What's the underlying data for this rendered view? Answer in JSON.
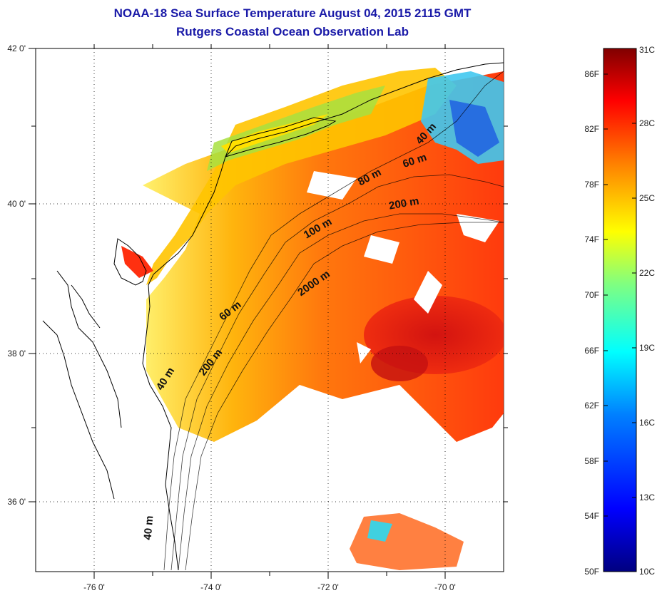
{
  "title": "NOAA-18 Sea Surface Temperature August 04, 2015 2115 GMT",
  "subtitle": "Rutgers Coastal Ocean Observation Lab",
  "map": {
    "lat_labels": [
      "42 0'",
      "40 0'",
      "38 0'",
      "36 0'"
    ],
    "lon_labels": [
      "-76 0'",
      "-74 0'",
      "-72 0'",
      "-70 0'"
    ],
    "depth_labels": [
      "40 m",
      "60 m",
      "80 m",
      "200 m",
      "100 m",
      "2000 m",
      "60 m",
      "200 m",
      "40 m",
      "40 m"
    ],
    "grid": "dotted"
  },
  "colorbar": {
    "fahrenheit": [
      "86F",
      "82F",
      "78F",
      "74F",
      "70F",
      "66F",
      "62F",
      "58F",
      "54F",
      "50F"
    ],
    "celsius": [
      "31C",
      "28C",
      "25C",
      "22C",
      "19C",
      "16C",
      "13C",
      "10C"
    ],
    "range_c": [
      10,
      31
    ],
    "colors": [
      "#000080",
      "#0000ff",
      "#0080ff",
      "#00ffff",
      "#80ff80",
      "#ffff00",
      "#ff8000",
      "#ff0000",
      "#800000"
    ]
  }
}
